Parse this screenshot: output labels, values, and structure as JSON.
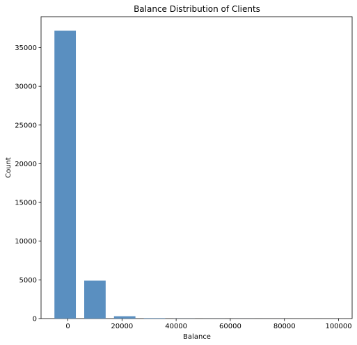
{
  "chart_data": {
    "type": "bar",
    "title": "Balance Distribution of Clients",
    "xlabel": "Balance",
    "ylabel": "Count",
    "x_ticks": [
      0,
      20000,
      40000,
      60000,
      80000,
      100000
    ],
    "y_ticks": [
      0,
      5000,
      10000,
      15000,
      20000,
      25000,
      30000,
      35000
    ],
    "xlim": [
      -9900,
      105000
    ],
    "ylim": [
      0,
      39000
    ],
    "bin_width": 11000,
    "bar_width_fraction": 0.72,
    "bars": [
      {
        "x": -1000,
        "count": 37200
      },
      {
        "x": 10000,
        "count": 4900
      },
      {
        "x": 21000,
        "count": 300
      },
      {
        "x": 32000,
        "count": 60
      },
      {
        "x": 43000,
        "count": 12
      },
      {
        "x": 54000,
        "count": 6
      },
      {
        "x": 65000,
        "count": 4
      },
      {
        "x": 76000,
        "count": 2
      },
      {
        "x": 87000,
        "count": 1
      },
      {
        "x": 98000,
        "count": 1
      }
    ],
    "bar_color": "#5a8fc0",
    "grid": false,
    "legend": "none"
  }
}
